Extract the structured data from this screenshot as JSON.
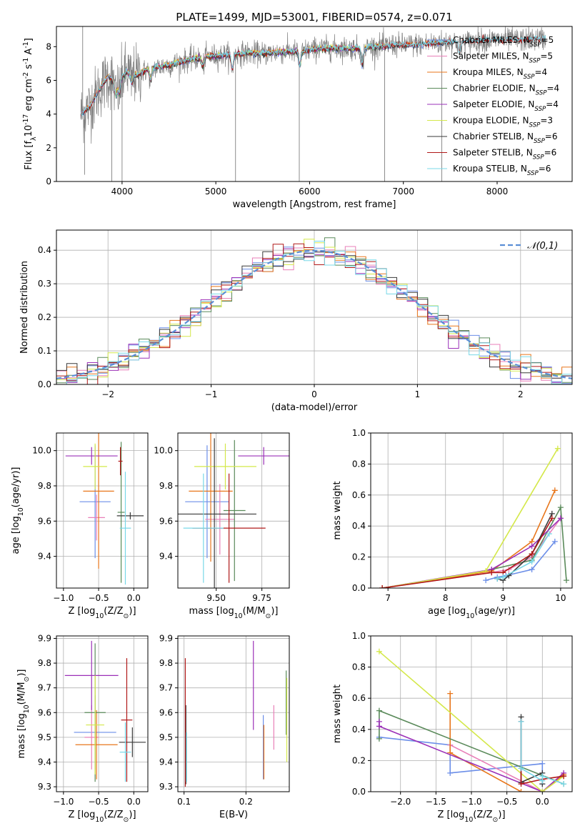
{
  "figure": {
    "title": "PLATE=1499, MJD=53001, FIBERID=0574, z=0.071"
  },
  "colors": {
    "Chabrier MILES": "#6b8ee8",
    "Salpeter MILES": "#e87fb8",
    "Kroupa MILES": "#e8761b",
    "Chabrier ELODIE": "#5a8a5a",
    "Salpeter ELODIE": "#9b30b8",
    "Kroupa ELODIE": "#d4e84a",
    "Chabrier STELIB": "#3a3a3a",
    "Salpeter STELIB": "#b01818",
    "Kroupa STELIB": "#78d8e8",
    "data": "#808080"
  },
  "chart_data": [
    {
      "id": "spectrum",
      "type": "line",
      "xlabel": "wavelength [Angstrom, rest frame]",
      "ylabel": "Flux [f$_{\\lambda}$10$^{-17}$ erg cm$^{-2}$ s$^{-1}$ A$^{-1}$]",
      "xlim": [
        3300,
        8800
      ],
      "ylim": [
        0,
        9.2
      ],
      "xticks": [
        4000,
        5000,
        6000,
        7000,
        8000
      ],
      "yticks": [
        0,
        2,
        4,
        6,
        8
      ],
      "legend_loc": "right",
      "legend": [
        {
          "name": "Chabrier MILES",
          "nssp": "5"
        },
        {
          "name": "Salpeter MILES",
          "nssp": "5"
        },
        {
          "name": "Kroupa MILES",
          "nssp": "4"
        },
        {
          "name": "Chabrier ELODIE",
          "nssp": "4"
        },
        {
          "name": "Salpeter ELODIE",
          "nssp": "4"
        },
        {
          "name": "Kroupa ELODIE",
          "nssp": "3"
        },
        {
          "name": "Chabrier STELIB",
          "nssp": "6"
        },
        {
          "name": "Salpeter STELIB",
          "nssp": "6"
        },
        {
          "name": "Kroupa STELIB",
          "nssp": "6"
        }
      ],
      "series_range": {
        "data": [
          3560,
          8520
        ],
        "MILES": [
          3560,
          7420
        ],
        "ELODIE": [
          3900,
          6800
        ],
        "STELIB": [
          3560,
          8520
        ]
      },
      "continuum": [
        [
          3560,
          4.0
        ],
        [
          3650,
          4.4
        ],
        [
          3750,
          5.4
        ],
        [
          3850,
          6.2
        ],
        [
          3950,
          5.8
        ],
        [
          4050,
          6.5
        ],
        [
          4150,
          6.3
        ],
        [
          4300,
          6.7
        ],
        [
          4500,
          6.9
        ],
        [
          4700,
          7.2
        ],
        [
          4900,
          7.4
        ],
        [
          5100,
          7.5
        ],
        [
          5300,
          7.6
        ],
        [
          5500,
          7.6
        ],
        [
          5700,
          7.7
        ],
        [
          5900,
          7.7
        ],
        [
          6100,
          7.9
        ],
        [
          6300,
          7.9
        ],
        [
          6500,
          7.9
        ],
        [
          6700,
          8.0
        ],
        [
          6900,
          8.1
        ],
        [
          7100,
          8.1
        ],
        [
          7300,
          8.2
        ],
        [
          7500,
          8.3
        ],
        [
          7700,
          8.3
        ],
        [
          7900,
          8.4
        ],
        [
          8100,
          8.4
        ],
        [
          8300,
          8.4
        ],
        [
          8520,
          8.5
        ]
      ],
      "absorption_features": [
        [
          3934,
          5.0
        ],
        [
          3969,
          5.2
        ],
        [
          4102,
          5.9
        ],
        [
          4305,
          6.0
        ],
        [
          4861,
          6.8
        ],
        [
          5175,
          6.7
        ],
        [
          5895,
          6.9
        ],
        [
          6563,
          7.0
        ],
        [
          7600,
          7.6
        ]
      ],
      "masked_spikes": [
        [
          3580,
          9.2
        ],
        [
          3600,
          0.4
        ],
        [
          3890,
          0.0
        ],
        [
          4000,
          0.0
        ],
        [
          5210,
          0.0
        ],
        [
          5890,
          0.0
        ],
        [
          6800,
          0.0
        ],
        [
          7410,
          0.0
        ]
      ]
    },
    {
      "id": "residuals",
      "type": "bar",
      "xlabel": "(data-model)/error",
      "ylabel": "Normed distribution",
      "xlim": [
        -2.5,
        2.5
      ],
      "ylim": [
        0,
        0.46
      ],
      "xticks": [
        -2,
        -1,
        0,
        1,
        2
      ],
      "yticks": [
        0.0,
        0.1,
        0.2,
        0.3,
        0.4
      ],
      "legend_loc": "top-right",
      "reference_curve": {
        "name": "$\\mathcal{N}(0,1)$",
        "mean": 0,
        "sigma": 1
      },
      "bin_width": 0.1,
      "normal_peak": 0.399
    },
    {
      "id": "age_vs_Z",
      "type": "scatter",
      "xlabel": "Z [log$_{10}$(Z/Z$_\\odot$)]",
      "ylabel": "age  [log$_{10}$(age/yr)]",
      "xlim": [
        -1.1,
        0.2
      ],
      "ylim": [
        9.22,
        10.1
      ],
      "xticks": [
        -1.0,
        -0.5,
        0.0
      ],
      "yticks": [
        9.4,
        9.6,
        9.8,
        10.0
      ],
      "points": [
        {
          "model": "Chabrier MILES",
          "x": -0.55,
          "xerr": 0.22,
          "y": 9.71,
          "yerr": 0.32
        },
        {
          "model": "Salpeter MILES",
          "x": -0.53,
          "xerr": 0.12,
          "y": 9.62,
          "yerr": 0.13
        },
        {
          "model": "Kroupa MILES",
          "x": -0.5,
          "xerr": 0.22,
          "y": 9.77,
          "yerr": 0.44
        },
        {
          "model": "Chabrier ELODIE",
          "x": -0.18,
          "xerr": 0.05,
          "y": 9.65,
          "yerr": 0.4
        },
        {
          "model": "Salpeter ELODIE",
          "x": -0.6,
          "xerr": 0.37,
          "y": 9.97,
          "yerr": 0.05
        },
        {
          "model": "Kroupa ELODIE",
          "x": -0.55,
          "xerr": 0.17,
          "y": 9.91,
          "yerr": 0.13
        },
        {
          "model": "Chabrier STELIB",
          "x": -0.05,
          "xerr": 0.19,
          "y": 9.63,
          "yerr": 0.02
        },
        {
          "model": "Salpeter STELIB",
          "x": -0.19,
          "xerr": 0.03,
          "y": 9.94,
          "yerr": 0.08
        },
        {
          "model": "Kroupa STELIB",
          "x": -0.12,
          "xerr": 0.08,
          "y": 9.56,
          "yerr": 0.32
        }
      ]
    },
    {
      "id": "age_vs_mass",
      "type": "scatter",
      "xlabel": "mass [log$_{10}$(M/M$_\\odot$)]",
      "ylabel": "",
      "xlim": [
        9.29,
        9.9
      ],
      "ylim": [
        9.22,
        10.1
      ],
      "xticks": [
        9.5,
        9.75
      ],
      "yticks": [
        9.4,
        9.6,
        9.8,
        10.0
      ],
      "points": [
        {
          "model": "Chabrier MILES",
          "x": 9.45,
          "xerr": 0.12,
          "y": 9.71,
          "yerr": 0.32
        },
        {
          "model": "Salpeter MILES",
          "x": 9.52,
          "xerr": 0.08,
          "y": 9.61,
          "yerr": 0.2
        },
        {
          "model": "Kroupa MILES",
          "x": 9.47,
          "xerr": 0.12,
          "y": 9.77,
          "yerr": 0.4
        },
        {
          "model": "Chabrier ELODIE",
          "x": 9.6,
          "xerr": 0.06,
          "y": 9.66,
          "yerr": 0.4
        },
        {
          "model": "Salpeter ELODIE",
          "x": 9.76,
          "xerr": 0.14,
          "y": 9.97,
          "yerr": 0.05
        },
        {
          "model": "Kroupa ELODIE",
          "x": 9.55,
          "xerr": 0.17,
          "y": 9.91,
          "yerr": 0.13
        },
        {
          "model": "Chabrier STELIB",
          "x": 9.49,
          "xerr": 0.23,
          "y": 9.64,
          "yerr": 0.43
        },
        {
          "model": "Salpeter STELIB",
          "x": 9.57,
          "xerr": 0.2,
          "y": 9.56,
          "yerr": 0.31
        },
        {
          "model": "Kroupa STELIB",
          "x": 9.43,
          "xerr": 0.11,
          "y": 9.56,
          "yerr": 0.31
        }
      ]
    },
    {
      "id": "weight_vs_age",
      "type": "line",
      "xlabel": "age  [log$_{10}$(age/yr)]",
      "ylabel": "mass weight",
      "xlim": [
        6.7,
        10.2
      ],
      "ylim": [
        0,
        1.0
      ],
      "xticks": [
        7,
        8,
        9,
        10
      ],
      "yticks": [
        0.0,
        0.2,
        0.4,
        0.6,
        0.8,
        1.0
      ],
      "series": [
        {
          "name": "Chabrier MILES",
          "x": [
            8.7,
            8.9,
            9.05,
            9.5,
            9.9
          ],
          "y": [
            0.05,
            0.07,
            0.08,
            0.12,
            0.3
          ]
        },
        {
          "name": "Salpeter MILES",
          "x": [
            6.9,
            8.8,
            9.1,
            9.5,
            10.0
          ],
          "y": [
            0.0,
            0.1,
            0.12,
            0.2,
            0.45
          ]
        },
        {
          "name": "Kroupa MILES",
          "x": [
            6.9,
            8.8,
            9.5,
            9.9
          ],
          "y": [
            0.0,
            0.11,
            0.3,
            0.63
          ]
        },
        {
          "name": "Chabrier ELODIE",
          "x": [
            8.8,
            9.5,
            10.0,
            10.1
          ],
          "y": [
            0.12,
            0.18,
            0.52,
            0.05
          ]
        },
        {
          "name": "Salpeter ELODIE",
          "x": [
            6.9,
            8.8,
            9.5,
            10.0
          ],
          "y": [
            0.0,
            0.12,
            0.27,
            0.45
          ]
        },
        {
          "name": "Kroupa ELODIE",
          "x": [
            6.9,
            8.7,
            9.95
          ],
          "y": [
            0.0,
            0.11,
            0.9
          ]
        },
        {
          "name": "Chabrier STELIB",
          "x": [
            8.9,
            9.0,
            9.1,
            9.5,
            9.85
          ],
          "y": [
            0.06,
            0.05,
            0.08,
            0.22,
            0.48
          ]
        },
        {
          "name": "Salpeter STELIB",
          "x": [
            6.9,
            8.8,
            9.0,
            9.5,
            9.85
          ],
          "y": [
            0.0,
            0.1,
            0.1,
            0.22,
            0.45
          ]
        },
        {
          "name": "Kroupa STELIB",
          "x": [
            8.9,
            9.0,
            9.5,
            9.8
          ],
          "y": [
            0.06,
            0.07,
            0.17,
            0.35
          ]
        }
      ]
    },
    {
      "id": "mass_vs_Z",
      "type": "scatter",
      "xlabel": "Z [log$_{10}$(Z/Z$_\\odot$)]",
      "ylabel": "mass [log$_{10}$(M/M$_\\odot$)]",
      "xlim": [
        -1.1,
        0.2
      ],
      "ylim": [
        9.28,
        9.91
      ],
      "xticks": [
        -1.0,
        -0.5,
        0.0
      ],
      "yticks": [
        9.3,
        9.4,
        9.5,
        9.6,
        9.7,
        9.8,
        9.9
      ],
      "points": [
        {
          "model": "Chabrier MILES",
          "x": -0.55,
          "xerr": 0.3,
          "y": 9.52,
          "yerr": 0.15
        },
        {
          "model": "Salpeter MILES",
          "x": -0.6,
          "xerr": 0.1,
          "y": 9.5,
          "yerr": 0.13
        },
        {
          "model": "Kroupa MILES",
          "x": -0.53,
          "xerr": 0.3,
          "y": 9.47,
          "yerr": 0.14
        },
        {
          "model": "Chabrier ELODIE",
          "x": -0.55,
          "xerr": 0.15,
          "y": 9.6,
          "yerr": 0.28
        },
        {
          "model": "Salpeter ELODIE",
          "x": -0.6,
          "xerr": 0.38,
          "y": 9.75,
          "yerr": 0.14
        },
        {
          "model": "Kroupa ELODIE",
          "x": -0.55,
          "xerr": 0.13,
          "y": 9.55,
          "yerr": 0.2
        },
        {
          "model": "Chabrier STELIB",
          "x": -0.02,
          "xerr": 0.19,
          "y": 9.48,
          "yerr": 0.06
        },
        {
          "model": "Salpeter STELIB",
          "x": -0.1,
          "xerr": 0.08,
          "y": 9.57,
          "yerr": 0.25
        },
        {
          "model": "Kroupa STELIB",
          "x": -0.12,
          "xerr": 0.08,
          "y": 9.44,
          "yerr": 0.12
        }
      ]
    },
    {
      "id": "mass_vs_ebv",
      "type": "scatter",
      "xlabel": "E(B-V)",
      "ylabel": "",
      "xlim": [
        0.09,
        0.27
      ],
      "ylim": [
        9.28,
        9.91
      ],
      "xticks": [
        0.1,
        0.2
      ],
      "yticks": [
        9.3,
        9.4,
        9.5,
        9.6,
        9.7,
        9.8,
        9.9
      ],
      "points": [
        {
          "model": "Chabrier MILES",
          "x": 0.228,
          "y": 9.46,
          "yerr": 0.13
        },
        {
          "model": "Salpeter MILES",
          "x": 0.245,
          "y": 9.54,
          "yerr": 0.09
        },
        {
          "model": "Kroupa MILES",
          "x": 0.229,
          "y": 9.44,
          "yerr": 0.11
        },
        {
          "model": "Chabrier ELODIE",
          "x": 0.265,
          "y": 9.64,
          "yerr": 0.13
        },
        {
          "model": "Salpeter ELODIE",
          "x": 0.212,
          "y": 9.71,
          "yerr": 0.18
        },
        {
          "model": "Kroupa ELODIE",
          "x": 0.266,
          "y": 9.57,
          "yerr": 0.17
        },
        {
          "model": "Chabrier STELIB",
          "x": 0.103,
          "y": 9.47,
          "yerr": 0.16
        },
        {
          "model": "Salpeter STELIB",
          "x": 0.102,
          "y": 9.56,
          "yerr": 0.26
        },
        {
          "model": "Kroupa STELIB",
          "x": 0.104,
          "y": 9.42,
          "yerr": 0.1
        }
      ]
    },
    {
      "id": "weight_vs_Z",
      "type": "line",
      "xlabel": "Z [log$_{10}$(Z/Z$_\\odot$)]",
      "ylabel": "mass weight",
      "xlim": [
        -2.42,
        0.42
      ],
      "ylim": [
        0,
        1.0
      ],
      "xticks": [
        -2.0,
        -1.5,
        -1.0,
        -0.5,
        0.0
      ],
      "yticks": [
        0.0,
        0.2,
        0.4,
        0.6,
        0.8,
        1.0
      ],
      "series": [
        {
          "name": "Chabrier MILES",
          "x": [
            -2.3,
            -1.3,
            -1.3,
            0.0,
            0.0
          ],
          "y": [
            0.35,
            0.3,
            0.12,
            0.18,
            0.05
          ]
        },
        {
          "name": "Salpeter MILES",
          "x": [
            -1.3,
            0.0,
            0.3
          ],
          "y": [
            0.3,
            0.0,
            0.1
          ]
        },
        {
          "name": "Kroupa MILES",
          "x": [
            -1.3,
            -1.3,
            -0.3,
            0.0,
            0.3
          ],
          "y": [
            0.63,
            0.25,
            0.0,
            0.0,
            0.11
          ]
        },
        {
          "name": "Chabrier ELODIE",
          "x": [
            -2.3,
            -2.3,
            0.3
          ],
          "y": [
            0.34,
            0.52,
            0.05
          ]
        },
        {
          "name": "Salpeter ELODIE",
          "x": [
            -2.3,
            -2.3,
            0.0,
            0.3
          ],
          "y": [
            0.45,
            0.42,
            0.0,
            0.12
          ]
        },
        {
          "name": "Kroupa ELODIE",
          "x": [
            -2.3,
            0.0,
            0.3
          ],
          "y": [
            0.9,
            0.0,
            0.1
          ]
        },
        {
          "name": "Chabrier STELIB",
          "x": [
            -0.3,
            -0.3,
            0.0,
            0.0
          ],
          "y": [
            0.48,
            0.06,
            0.12,
            0.05
          ]
        },
        {
          "name": "Salpeter STELIB",
          "x": [
            -0.3,
            -0.3,
            0.0,
            0.3
          ],
          "y": [
            0.45,
            0.05,
            0.08,
            0.1
          ]
        },
        {
          "name": "Kroupa STELIB",
          "x": [
            -0.3,
            -0.3,
            0.0,
            0.0,
            0.3
          ],
          "y": [
            0.45,
            0.15,
            0.07,
            0.1,
            0.05
          ]
        }
      ]
    }
  ]
}
